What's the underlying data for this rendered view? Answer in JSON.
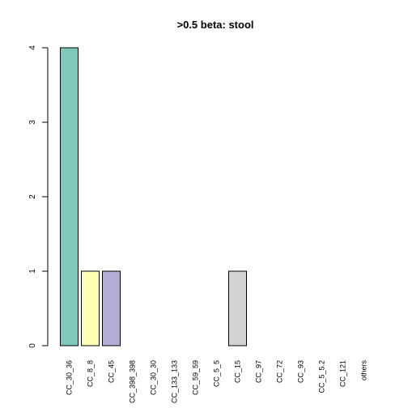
{
  "chart_data": {
    "type": "bar",
    "title": ">0.5 beta:  stool",
    "categories": [
      "CC_30_36",
      "CC_8_8",
      "CC_45",
      "CC_398_398",
      "CC_30_30",
      "CC_133_133",
      "CC_59_59",
      "CC_5_5",
      "CC_15",
      "CC_97",
      "CC_72",
      "CC_93",
      "CC_5_5.2",
      "CC_121",
      "others"
    ],
    "values": [
      4,
      1,
      1,
      0,
      0,
      0,
      0,
      0,
      1,
      0,
      0,
      0,
      0,
      0,
      0
    ],
    "colors": [
      "#7fc9bc",
      "#ffffb3",
      "#b3aed6",
      "#b3aed6",
      "#b3aed6",
      "#b3aed6",
      "#b3aed6",
      "#b3aed6",
      "#d4d4d4",
      "#d4d4d4",
      "#d4d4d4",
      "#d4d4d4",
      "#d4d4d4",
      "#d4d4d4",
      "#d4d4d4"
    ],
    "yticks": [
      0,
      1,
      2,
      3,
      4
    ],
    "ylim": [
      0,
      4
    ],
    "xlabel": "",
    "ylabel": "",
    "grid": false,
    "legend": "none"
  }
}
